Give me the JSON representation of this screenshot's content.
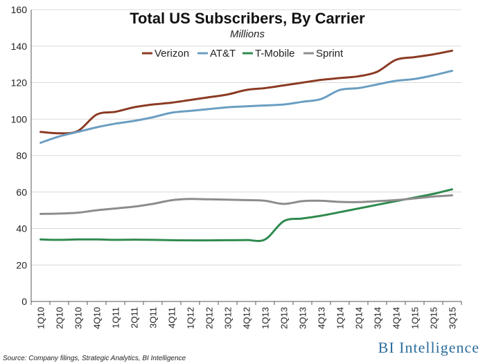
{
  "chart_data": {
    "type": "line",
    "title": "Total US Subscribers, By Carrier",
    "subtitle": "Millions",
    "xlabel": "",
    "ylabel": "",
    "ylim": [
      0,
      160
    ],
    "yticks": [
      0,
      20,
      40,
      60,
      80,
      100,
      120,
      140,
      160
    ],
    "grid": true,
    "legend_position": "top-center",
    "categories": [
      "1Q10",
      "2Q10",
      "3Q10",
      "4Q10",
      "1Q11",
      "2Q11",
      "3Q11",
      "4Q11",
      "1Q12",
      "2Q12",
      "3Q12",
      "4Q12",
      "1Q13",
      "2Q13",
      "3Q13",
      "4Q13",
      "1Q14",
      "2Q14",
      "3Q14",
      "4Q14",
      "1Q15",
      "2Q15",
      "3Q15"
    ],
    "series": [
      {
        "name": "Verizon",
        "color": "#8b3a22",
        "values": [
          93,
          92.2,
          93.5,
          102.5,
          104,
          106.5,
          108,
          109,
          110.5,
          112,
          113.5,
          116,
          117,
          118.5,
          120,
          121.5,
          122.5,
          123.5,
          126,
          132.5,
          134,
          135.5,
          137.5
        ]
      },
      {
        "name": "AT&T",
        "color": "#6a9ec2",
        "values": [
          87,
          90.5,
          93,
          95.5,
          97.5,
          99,
          101,
          103.5,
          104.5,
          105.5,
          106.5,
          107,
          107.5,
          108,
          109.5,
          111,
          116,
          117,
          119,
          121,
          122,
          124,
          126.5
        ]
      },
      {
        "name": "T-Mobile",
        "color": "#2f8a4e",
        "values": [
          34,
          33.8,
          34,
          34,
          33.8,
          33.9,
          33.8,
          33.6,
          33.5,
          33.5,
          33.6,
          33.7,
          34,
          44,
          45.5,
          47,
          49,
          51,
          53,
          55,
          57,
          59,
          61.5
        ]
      },
      {
        "name": "Sprint",
        "color": "#8c8c8c",
        "values": [
          48,
          48.2,
          48.7,
          50,
          51,
          52,
          53.5,
          55.5,
          56.2,
          56,
          55.8,
          55.6,
          55.2,
          53.5,
          55,
          55.2,
          54.6,
          54.5,
          55,
          55.6,
          56.5,
          57.5,
          58.2
        ]
      }
    ],
    "source": "Source: Company filings, Strategic Analytics, BI Intelligence",
    "brand": "BI Intelligence"
  }
}
